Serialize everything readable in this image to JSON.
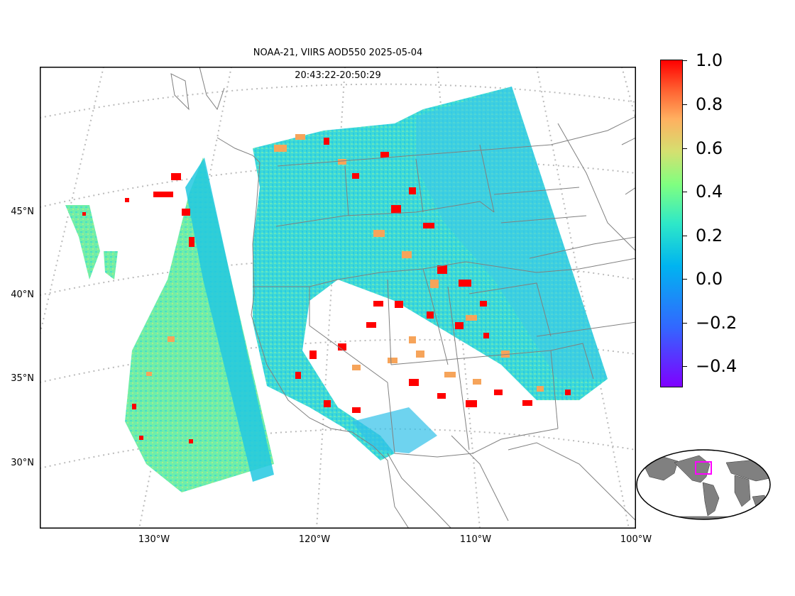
{
  "title": {
    "line1": "NOAA-21, VIIRS AOD550 2025-05-04",
    "line2": "20:43:22-20:50:29"
  },
  "lat_labels": [
    "45°N",
    "40°N",
    "35°N",
    "30°N"
  ],
  "lon_labels": [
    "130°W",
    "120°W",
    "110°W",
    "100°W"
  ],
  "colorbar": {
    "ticks": [
      "1.0",
      "0.8",
      "0.6",
      "0.4",
      "0.2",
      "0.0",
      "−0.2",
      "−0.4"
    ],
    "colors": [
      "#7f00ff",
      "#00b4f0",
      "#80ff80",
      "#ff0000"
    ]
  },
  "inset": {
    "land_color": "#808080",
    "box_color": "#ff00ff"
  },
  "swath_colors": {
    "low": "#20d0e0",
    "mid": "#80f0a0",
    "high": "#ff0000"
  }
}
